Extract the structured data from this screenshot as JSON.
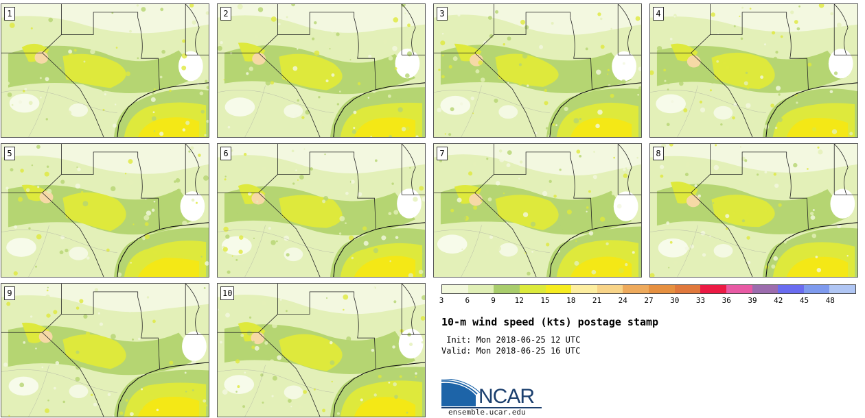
{
  "title": "10-m wind speed (kts) postage stamp",
  "init_line": " Init: Mon 2018-06-25 12 UTC",
  "valid_line": "Valid: Mon 2018-06-25 16 UTC",
  "panels": [
    {
      "label": "1"
    },
    {
      "label": "2"
    },
    {
      "label": "3"
    },
    {
      "label": "4"
    },
    {
      "label": "5"
    },
    {
      "label": "6"
    },
    {
      "label": "7"
    },
    {
      "label": "8"
    },
    {
      "label": "9"
    },
    {
      "label": "10"
    }
  ],
  "colorbar": {
    "ticks": [
      "3",
      "6",
      "9",
      "12",
      "15",
      "18",
      "21",
      "24",
      "27",
      "30",
      "33",
      "36",
      "39",
      "42",
      "45",
      "48"
    ],
    "colors": [
      "#f2f8dc",
      "#e0efb6",
      "#a9cd6c",
      "#dcea3c",
      "#f6ec20",
      "#fdeea0",
      "#f8d488",
      "#eeaa5c",
      "#e69040",
      "#e0783c",
      "#ec1a44",
      "#e85aa4",
      "#9c6cae",
      "#6a6cf0",
      "#7e9aee",
      "#b0c6f4"
    ]
  },
  "map_colors": {
    "calm": "#f3f8e0",
    "light": "#e3f0b8",
    "moderate": "#b5d572",
    "fresh": "#dee93c",
    "strong": "#f4e816",
    "gust": "#f6d9a6",
    "low": "#ffffff"
  },
  "logo": {
    "text": "NCAR",
    "site": "ensemble.ucar.edu",
    "blue": "#1d64a8",
    "dark": "#1b3f6e"
  }
}
